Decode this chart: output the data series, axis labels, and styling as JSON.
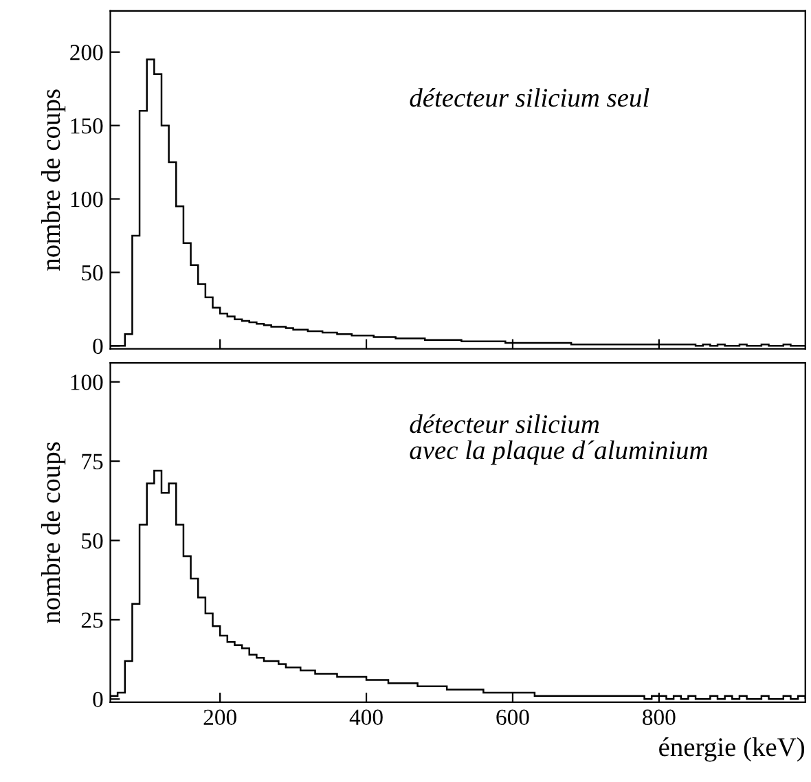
{
  "chart_data": [
    {
      "type": "histogram",
      "ylabel": "nombre de coups",
      "annotations": [
        "détecteur silicium seul"
      ],
      "bins": [
        50,
        60,
        70,
        80,
        90,
        100,
        110,
        120,
        130,
        140,
        150,
        160,
        170,
        180,
        190,
        200,
        210,
        220,
        230,
        240,
        250,
        260,
        270,
        280,
        290,
        300,
        310,
        320,
        330,
        340,
        350,
        360,
        370,
        380,
        390,
        400,
        410,
        420,
        430,
        440,
        450,
        460,
        470,
        480,
        490,
        500,
        510,
        520,
        530,
        540,
        550,
        560,
        570,
        580,
        590,
        600,
        610,
        620,
        630,
        640,
        650,
        660,
        670,
        680,
        690,
        700,
        710,
        720,
        730,
        740,
        750,
        760,
        770,
        780,
        790,
        800,
        810,
        820,
        830,
        840,
        850,
        860,
        870,
        880,
        890,
        900,
        910,
        920,
        930,
        940,
        950,
        960,
        970,
        980,
        990,
        1000
      ],
      "values": [
        0,
        0,
        8,
        75,
        160,
        195,
        185,
        150,
        125,
        95,
        70,
        55,
        42,
        33,
        26,
        22,
        20,
        18,
        17,
        16,
        15,
        14,
        13,
        13,
        12,
        11,
        11,
        10,
        10,
        9,
        9,
        8,
        8,
        7,
        7,
        7,
        6,
        6,
        6,
        5,
        5,
        5,
        5,
        4,
        4,
        4,
        4,
        4,
        3,
        3,
        3,
        3,
        3,
        3,
        2,
        2,
        2,
        2,
        2,
        2,
        2,
        2,
        2,
        1,
        1,
        1,
        1,
        1,
        1,
        1,
        1,
        1,
        1,
        1,
        1,
        1,
        1,
        1,
        1,
        1,
        0,
        1,
        0,
        1,
        0,
        0,
        1,
        0,
        0,
        1,
        0,
        0,
        1,
        0,
        0
      ],
      "color": "#000000",
      "xlim": [
        50,
        1000
      ],
      "xticks": [
        200,
        400,
        600,
        800
      ],
      "ylim": [
        -2,
        228
      ],
      "yticks": [
        0,
        50,
        100,
        150,
        200
      ],
      "tick_labels": "y",
      "grid": false
    },
    {
      "type": "histogram",
      "ylabel": "nombre de coups",
      "xlabel": "énergie (keV)",
      "annotations": [
        "détecteur silicium\navec la plaque d´aluminium"
      ],
      "bins": [
        50,
        60,
        70,
        80,
        90,
        100,
        110,
        120,
        130,
        140,
        150,
        160,
        170,
        180,
        190,
        200,
        210,
        220,
        230,
        240,
        250,
        260,
        270,
        280,
        290,
        300,
        310,
        320,
        330,
        340,
        350,
        360,
        370,
        380,
        390,
        400,
        410,
        420,
        430,
        440,
        450,
        460,
        470,
        480,
        490,
        500,
        510,
        520,
        530,
        540,
        550,
        560,
        570,
        580,
        590,
        600,
        610,
        620,
        630,
        640,
        650,
        660,
        670,
        680,
        690,
        700,
        710,
        720,
        730,
        740,
        750,
        760,
        770,
        780,
        790,
        800,
        810,
        820,
        830,
        840,
        850,
        860,
        870,
        880,
        890,
        900,
        910,
        920,
        930,
        940,
        950,
        960,
        970,
        980,
        990,
        1000
      ],
      "values": [
        1,
        2,
        12,
        30,
        55,
        68,
        72,
        65,
        68,
        55,
        45,
        38,
        32,
        27,
        23,
        20,
        18,
        17,
        16,
        14,
        13,
        12,
        12,
        11,
        10,
        10,
        9,
        9,
        8,
        8,
        8,
        7,
        7,
        7,
        7,
        6,
        6,
        6,
        5,
        5,
        5,
        5,
        4,
        4,
        4,
        4,
        3,
        3,
        3,
        3,
        3,
        2,
        2,
        2,
        2,
        2,
        2,
        2,
        1,
        1,
        1,
        1,
        1,
        1,
        1,
        1,
        1,
        1,
        1,
        1,
        1,
        1,
        1,
        0,
        1,
        1,
        0,
        1,
        0,
        1,
        0,
        0,
        1,
        0,
        1,
        0,
        1,
        0,
        0,
        1,
        0,
        0,
        1,
        0,
        1
      ],
      "color": "#000000",
      "xlim": [
        50,
        1000
      ],
      "xticks": [
        200,
        400,
        600,
        800
      ],
      "ylim": [
        -1,
        106
      ],
      "yticks": [
        0,
        25,
        50,
        75,
        100
      ],
      "grid": false
    }
  ]
}
